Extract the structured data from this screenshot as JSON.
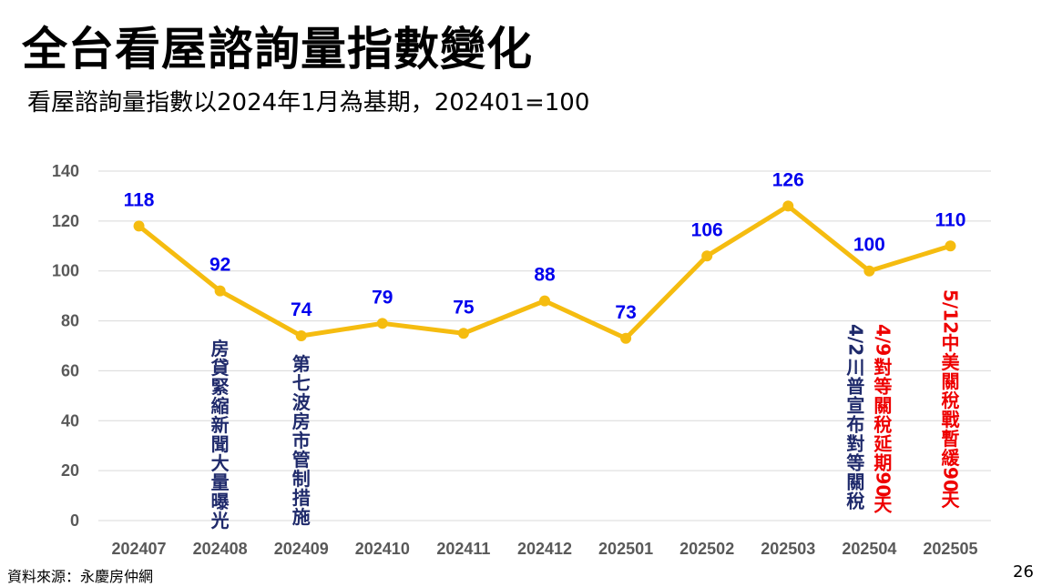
{
  "title": "全台看屋諮詢量指數變化",
  "subtitle": "看屋諮詢量指數以2024年1月為基期，202401=100",
  "source": "資料來源：永慶房仲網",
  "page_number": "26",
  "colors": {
    "line": "#F5BC10",
    "data_label": "#0000EE",
    "annotation_navy": "#1F2A6B",
    "annotation_red": "#EE0000",
    "grid": "#D9D9D9",
    "tick": "#595959"
  },
  "chart_data": {
    "type": "line",
    "categories": [
      "202407",
      "202408",
      "202409",
      "202410",
      "202411",
      "202412",
      "202501",
      "202502",
      "202503",
      "202504",
      "202505"
    ],
    "values": [
      118,
      92,
      74,
      79,
      75,
      88,
      73,
      106,
      126,
      100,
      110
    ],
    "ylim": [
      0,
      140
    ],
    "yticks": [
      0,
      20,
      40,
      60,
      80,
      100,
      120,
      140
    ],
    "grid": true,
    "annotations": [
      {
        "category": "202408",
        "text": "房貸緊縮新聞大量曝光",
        "color": "navy"
      },
      {
        "category": "202409",
        "text": "第七波房市管制措施",
        "color": "navy"
      },
      {
        "category": "202504",
        "text": "4/2川普宣布對等關稅",
        "color": "navy"
      },
      {
        "category": "202504",
        "text": "4/9對等關稅延期90天",
        "color": "red"
      },
      {
        "category": "202505",
        "text": "5/12中美關稅戰暫緩90天",
        "color": "red"
      }
    ]
  }
}
